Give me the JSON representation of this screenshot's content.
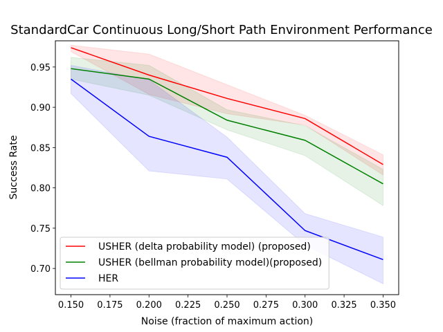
{
  "chart_data": {
    "type": "line",
    "title": "StandardCar Continuous Long/Short Path Environment Performance",
    "xlabel": "Noise (fraction of maximum action)",
    "ylabel": "Success Rate",
    "xlim": [
      0.14,
      0.36
    ],
    "ylim": [
      0.6675,
      0.9825
    ],
    "xticks": [
      0.15,
      0.175,
      0.2,
      0.225,
      0.25,
      0.275,
      0.3,
      0.325,
      0.35
    ],
    "xtick_labels": [
      "0.150",
      "0.175",
      "0.200",
      "0.225",
      "0.250",
      "0.275",
      "0.300",
      "0.325",
      "0.350"
    ],
    "yticks": [
      0.7,
      0.75,
      0.8,
      0.85,
      0.9,
      0.95
    ],
    "ytick_labels": [
      "0.70",
      "0.75",
      "0.80",
      "0.85",
      "0.90",
      "0.95"
    ],
    "grid": false,
    "legend_position": "lower-left",
    "x": [
      0.15,
      0.2,
      0.25,
      0.3,
      0.35
    ],
    "series": [
      {
        "name": "USHER (delta probability model) (proposed)",
        "color": "#ff0000",
        "values": [
          0.974,
          0.94,
          0.911,
          0.886,
          0.829
        ],
        "upper": [
          0.977,
          0.966,
          0.928,
          0.89,
          0.841
        ],
        "lower": [
          0.969,
          0.916,
          0.892,
          0.878,
          0.816
        ]
      },
      {
        "name": "USHER (bellman probability model)(proposed)",
        "color": "#008000",
        "values": [
          0.948,
          0.935,
          0.884,
          0.859,
          0.805
        ],
        "upper": [
          0.962,
          0.952,
          0.897,
          0.877,
          0.823
        ],
        "lower": [
          0.935,
          0.915,
          0.872,
          0.84,
          0.778
        ]
      },
      {
        "name": "HER",
        "color": "#0000ff",
        "values": [
          0.935,
          0.864,
          0.838,
          0.747,
          0.711
        ],
        "upper": [
          0.952,
          0.934,
          0.863,
          0.768,
          0.739
        ],
        "lower": [
          0.917,
          0.821,
          0.811,
          0.729,
          0.681
        ]
      }
    ]
  }
}
